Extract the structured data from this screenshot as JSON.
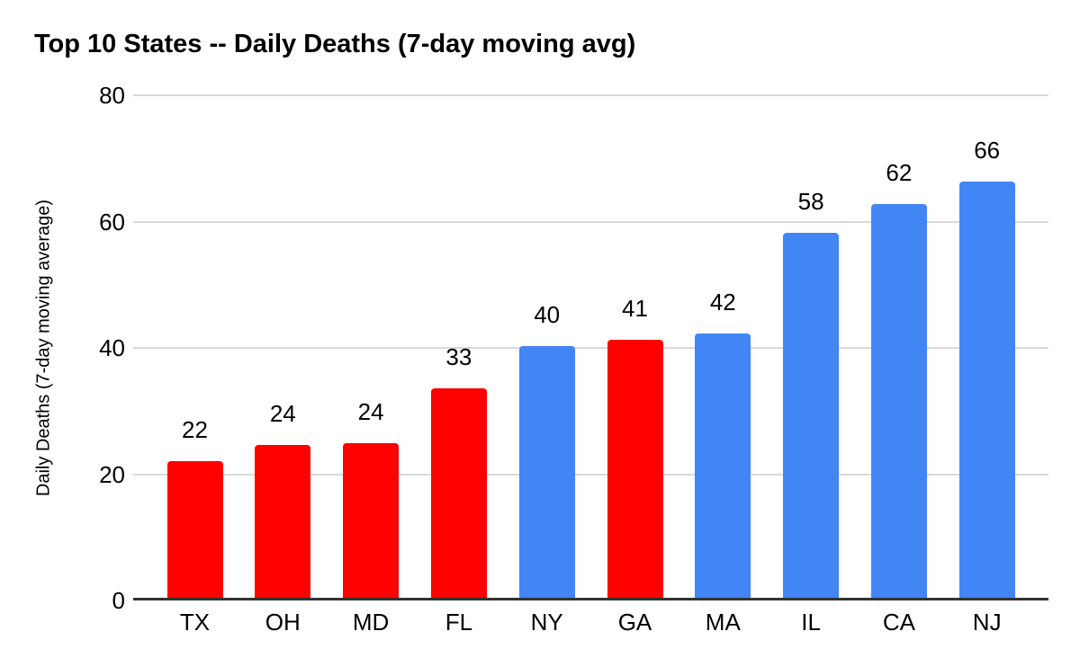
{
  "chart_data": {
    "type": "bar",
    "title": "Top 10 States -- Daily Deaths (7-day moving avg)",
    "ylabel": "Daily Deaths (7-day moving average)",
    "xlabel": "",
    "categories": [
      "TX",
      "OH",
      "MD",
      "FL",
      "NY",
      "GA",
      "MA",
      "IL",
      "CA",
      "NJ"
    ],
    "values": [
      22,
      24,
      24,
      33,
      40,
      41,
      42,
      58,
      62,
      66
    ],
    "values_precise": [
      21.7,
      24.2,
      24.5,
      33.1,
      39.9,
      40.8,
      41.9,
      57.8,
      62.3,
      65.9
    ],
    "bar_colors": [
      "#ff0000",
      "#ff0000",
      "#ff0000",
      "#ff0000",
      "#4285f4",
      "#ff0000",
      "#4285f4",
      "#4285f4",
      "#4285f4",
      "#4285f4"
    ],
    "ylim": [
      0,
      80
    ],
    "yticks": [
      0,
      20,
      40,
      60,
      80
    ],
    "grid": true,
    "legend": "none",
    "data_labels": true,
    "colors": {
      "red": "#ff0000",
      "blue": "#4285f4",
      "gridline": "#d9d9d9",
      "axis_line": "#333333",
      "text": "#000000",
      "background": "#ffffff"
    }
  }
}
